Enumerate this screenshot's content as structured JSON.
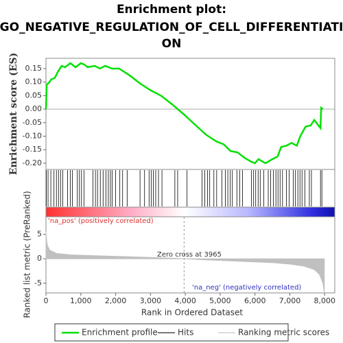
{
  "chart_data": [
    {
      "type": "line",
      "title": "Enrichment plot:",
      "subtitle": "GO_NEGATIVE_REGULATION_OF_CELL_DIFFERENTIATI",
      "subtitle2": "ON",
      "y_label": "Enrichment score (ES)",
      "xlim": [
        0,
        8290
      ],
      "ylim": [
        -0.223,
        0.188
      ],
      "yticks": [
        0.15,
        {
          "value": 0.1,
          "label": "0.10"
        },
        0.05,
        {
          "value": 0,
          "label": "0.00"
        },
        -0.05,
        {
          "value": -0.1,
          "label": "-0.10"
        },
        -0.15,
        {
          "value": -0.2,
          "label": "-0.20"
        }
      ],
      "x": [
        0,
        20,
        100,
        150,
        250,
        350,
        450,
        550,
        700,
        850,
        1000,
        1100,
        1200,
        1400,
        1550,
        1700,
        1900,
        2100,
        2400,
        2700,
        3000,
        3300,
        3600,
        3965,
        4300,
        4600,
        4900,
        5100,
        5300,
        5500,
        5700,
        5900,
        6000,
        6100,
        6300,
        6500,
        6650,
        6750,
        6900,
        7050,
        7200,
        7300,
        7450,
        7600,
        7700,
        7880,
        7900,
        7950
      ],
      "series": [
        {
          "name": "Enrichment profile",
          "color": "#00e000",
          "values": [
            0,
            0.09,
            0.1,
            0.11,
            0.115,
            0.14,
            0.16,
            0.155,
            0.17,
            0.155,
            0.17,
            0.165,
            0.155,
            0.16,
            0.15,
            0.16,
            0.15,
            0.15,
            0.125,
            0.095,
            0.07,
            0.05,
            0.02,
            -0.02,
            -0.06,
            -0.095,
            -0.12,
            -0.13,
            -0.155,
            -0.16,
            -0.18,
            -0.195,
            -0.2,
            -0.185,
            -0.2,
            -0.185,
            -0.175,
            -0.14,
            -0.135,
            -0.125,
            -0.135,
            -0.1,
            -0.065,
            -0.06,
            -0.04,
            -0.07,
            0.005,
            0
          ]
        }
      ]
    },
    {
      "type": "rug",
      "xlim": [
        0,
        8290
      ],
      "series": [
        {
          "name": "Hits",
          "color": "#000000",
          "x": [
            10,
            60,
            140,
            230,
            300,
            360,
            420,
            480,
            620,
            700,
            760,
            900,
            960,
            1020,
            1090,
            1350,
            1420,
            1480,
            1560,
            1640,
            1720,
            1790,
            1850,
            1900,
            2000,
            2120,
            2200,
            2330,
            2700,
            2830,
            2960,
            3020,
            3080,
            3150,
            3230,
            3330,
            3700,
            3780,
            4050,
            4480,
            4560,
            4640,
            4700,
            4820,
            4900,
            5050,
            5150,
            5220,
            5290,
            5350,
            5480,
            5560,
            5640,
            5900,
            5960,
            6020,
            6090,
            6150,
            6250,
            6380,
            6450,
            6530,
            6600,
            6660,
            6720,
            6790,
            6900,
            6980,
            7100,
            7160,
            7230,
            7290,
            7350,
            7430,
            7560,
            7620,
            7880,
            7920
          ]
        }
      ]
    },
    {
      "type": "area",
      "y_label": "Ranked list metric (PreRanked)",
      "x_label": "Rank in Ordered Dataset",
      "xlim": [
        0,
        8290
      ],
      "ylim": [
        -7,
        8.6
      ],
      "xticks": [
        0,
        {
          "value": 1000,
          "label": "1,000"
        },
        {
          "value": 2000,
          "label": "2,000"
        },
        {
          "value": 3000,
          "label": "3,000"
        },
        {
          "value": 4000,
          "label": "4,000"
        },
        {
          "value": 5000,
          "label": "5,000"
        },
        {
          "value": 6000,
          "label": "6,000"
        },
        {
          "value": 7000,
          "label": "7,000"
        },
        {
          "value": 8000,
          "label": "8,000"
        }
      ],
      "yticks": [
        5,
        0,
        -5
      ],
      "zero_cross": 3965,
      "annotations": [
        "'na_pos' (positively correlated)",
        "Zero cross at 3965",
        "'na_neg' (negatively correlated)"
      ],
      "x": [
        0,
        30,
        100,
        300,
        700,
        1500,
        2500,
        3500,
        3965,
        4500,
        5500,
        6500,
        7000,
        7400,
        7700,
        7850,
        7950,
        7990
      ],
      "series": [
        {
          "name": "Ranking metric scores",
          "color": "#c0c0c0",
          "values": [
            5.5,
            3,
            1.8,
            1.1,
            0.8,
            0.6,
            0.4,
            0.15,
            0,
            -0.2,
            -0.5,
            -0.8,
            -1.1,
            -1.5,
            -2.2,
            -3.2,
            -5,
            -7
          ]
        }
      ]
    }
  ]
}
